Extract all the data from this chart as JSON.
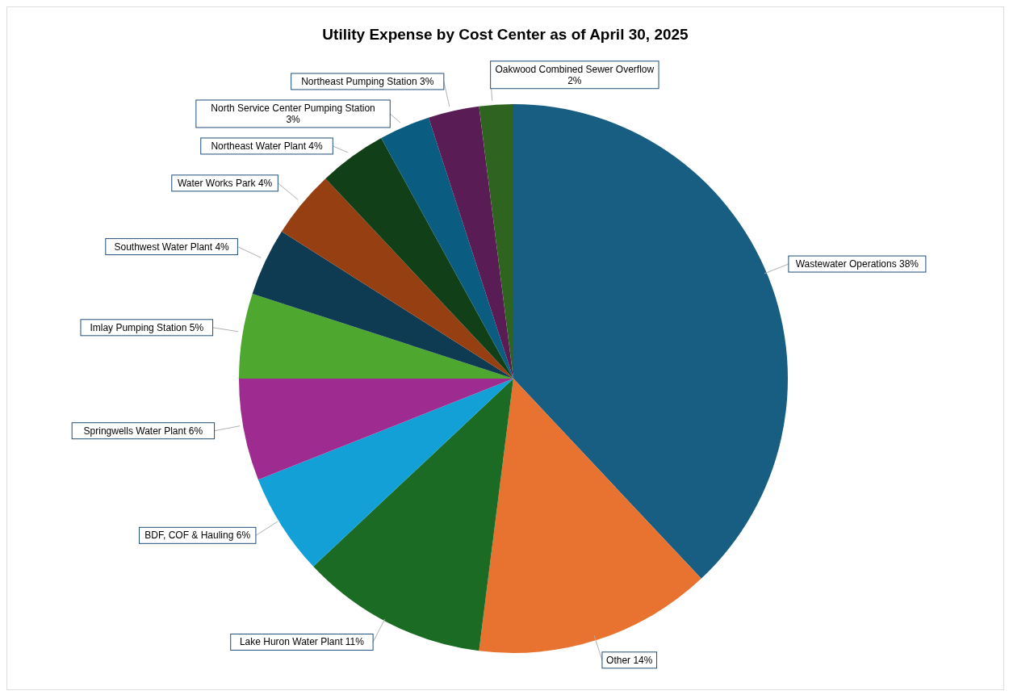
{
  "chart_data": {
    "type": "pie",
    "title": "Utility  Expense by Cost Center as of April 30, 2025",
    "categories": [
      "Wastewater Operations",
      "Other",
      "Lake Huron Water Plant",
      "BDF, COF & Hauling",
      "Springwells Water Plant",
      "Imlay Pumping Station",
      "Southwest Water Plant",
      "Water Works Park",
      "Northeast Water Plant",
      "North Service Center Pumping Station",
      "Northeast Pumping Station",
      "Oakwood Combined Sewer Overflow"
    ],
    "values": [
      38,
      14,
      11,
      6,
      6,
      5,
      4,
      4,
      4,
      3,
      3,
      2
    ],
    "value_labels": [
      "38%",
      "14%",
      "11%",
      "6%",
      "6%",
      "5%",
      "4%",
      "4%",
      "4%",
      "3%",
      "3%",
      "2%"
    ],
    "colors": [
      "#185e82",
      "#e8722f",
      "#1b6b25",
      "#12a0d7",
      "#9e2b8f",
      "#4ea72e",
      "#0e3a52",
      "#953f12",
      "#103f18",
      "#0a5d80",
      "#5a1c55",
      "#2e6420"
    ],
    "legend": false
  }
}
